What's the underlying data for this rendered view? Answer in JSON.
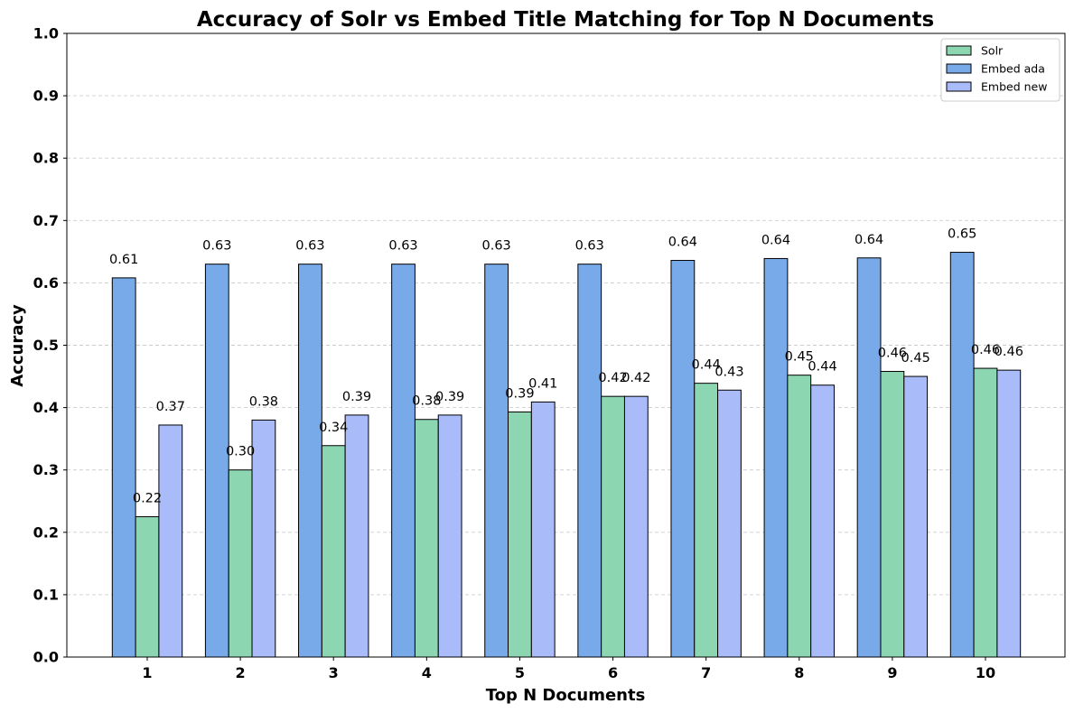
{
  "chart_data": {
    "type": "bar",
    "title": "Accuracy of Solr vs Embed Title Matching for Top N Documents",
    "xlabel": "Top N Documents",
    "ylabel": "Accuracy",
    "ylim": [
      0,
      1.0
    ],
    "yticks": [
      "0.0",
      "0.1",
      "0.2",
      "0.3",
      "0.4",
      "0.5",
      "0.6",
      "0.7",
      "0.8",
      "0.9",
      "1.0"
    ],
    "categories": [
      "1",
      "2",
      "3",
      "4",
      "5",
      "6",
      "7",
      "8",
      "9",
      "10"
    ],
    "grid": "horizontal dashed",
    "legend_position": "top-right",
    "series": [
      {
        "name": "Solr",
        "color": "#8dd6b2",
        "values": [
          0.225,
          0.3,
          0.339,
          0.381,
          0.393,
          0.418,
          0.439,
          0.452,
          0.458,
          0.463
        ],
        "labels": [
          "0.22",
          "0.30",
          "0.34",
          "0.38",
          "0.39",
          "0.42",
          "0.44",
          "0.45",
          "0.46",
          "0.46"
        ]
      },
      {
        "name": "Embed ada",
        "color": "#78aaea",
        "values": [
          0.608,
          0.63,
          0.63,
          0.63,
          0.63,
          0.63,
          0.636,
          0.639,
          0.64,
          0.649
        ],
        "labels": [
          "0.61",
          "0.63",
          "0.63",
          "0.63",
          "0.63",
          "0.63",
          "0.64",
          "0.64",
          "0.64",
          "0.65"
        ]
      },
      {
        "name": "Embed new",
        "color": "#a9bbf8",
        "values": [
          0.372,
          0.38,
          0.388,
          0.388,
          0.409,
          0.418,
          0.428,
          0.436,
          0.45,
          0.46
        ],
        "labels": [
          "0.37",
          "0.38",
          "0.39",
          "0.39",
          "0.41",
          "0.42",
          "0.43",
          "0.44",
          "0.45",
          "0.46"
        ]
      }
    ]
  }
}
